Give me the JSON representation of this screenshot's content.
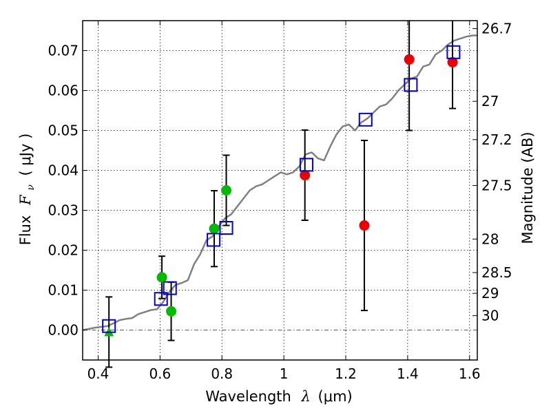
{
  "chart_data": {
    "type": "scatter",
    "xlabel": "Wavelength",
    "xlabel_symbol": "λ",
    "xlabel_unit": "(μm)",
    "ylabel": "Flux",
    "ylabel_symbol": "F",
    "ylabel_subscript": "ν",
    "ylabel_unit": "( μJy )",
    "right_ylabel": "Magnitude (AB)",
    "xlim": [
      0.35,
      1.625
    ],
    "ylim": [
      -0.0075,
      0.0775
    ],
    "grid": true,
    "x_ticks": [
      0.4,
      0.6,
      0.8,
      1,
      1.2,
      1.4,
      1.6
    ],
    "x_tick_labels": [
      "0.4",
      "0.6",
      "0.8",
      "1",
      "1.2",
      "1.4",
      "1.6"
    ],
    "y_ticks": [
      0.0,
      0.01,
      0.02,
      0.03,
      0.04,
      0.05,
      0.06,
      0.07
    ],
    "y_tick_labels": [
      "0.00",
      "0.01",
      "0.02",
      "0.03",
      "0.04",
      "0.05",
      "0.06",
      "0.07"
    ],
    "right_ticks": [
      {
        "label": "26.7",
        "flux": 0.0755
      },
      {
        "label": "27",
        "flux": 0.0573
      },
      {
        "label": "27.2",
        "flux": 0.0477
      },
      {
        "label": "27.5",
        "flux": 0.0362
      },
      {
        "label": "28",
        "flux": 0.0228
      },
      {
        "label": "28.5",
        "flux": 0.0144
      },
      {
        "label": "29",
        "flux": 0.0092
      },
      {
        "label": "30",
        "flux": 0.0036
      }
    ],
    "colors": {
      "model": "#808080",
      "model_points": "#0000cc",
      "hst_points": "#00bb00",
      "ir_points": "#ee0000",
      "errorbar": "#000000",
      "zero_line": "#555555"
    },
    "series": [
      {
        "kind": "line",
        "x": [
          0.35,
          0.37,
          0.39,
          0.41,
          0.43,
          0.45,
          0.47,
          0.49,
          0.51,
          0.53,
          0.55,
          0.57,
          0.59,
          0.61,
          0.63,
          0.65,
          0.67,
          0.69,
          0.71,
          0.73,
          0.75,
          0.77,
          0.79,
          0.81,
          0.83,
          0.85,
          0.87,
          0.89,
          0.91,
          0.93,
          0.95,
          0.97,
          0.99,
          1.01,
          1.03,
          1.05,
          1.07,
          1.09,
          1.11,
          1.13,
          1.15,
          1.17,
          1.19,
          1.21,
          1.23,
          1.25,
          1.27,
          1.29,
          1.31,
          1.33,
          1.35,
          1.37,
          1.39,
          1.41,
          1.43,
          1.45,
          1.47,
          1.49,
          1.51,
          1.53,
          1.55,
          1.57,
          1.59,
          1.61,
          1.625
        ],
        "y": [
          0.0,
          0.0003,
          0.0006,
          0.0008,
          0.001,
          0.0017,
          0.0025,
          0.0028,
          0.003,
          0.004,
          0.0045,
          0.005,
          0.0052,
          0.007,
          0.0095,
          0.0113,
          0.0118,
          0.0125,
          0.0165,
          0.019,
          0.0225,
          0.0235,
          0.026,
          0.028,
          0.029,
          0.031,
          0.033,
          0.035,
          0.036,
          0.0365,
          0.0375,
          0.0385,
          0.0395,
          0.039,
          0.0395,
          0.041,
          0.044,
          0.0445,
          0.043,
          0.0425,
          0.046,
          0.049,
          0.051,
          0.0515,
          0.05,
          0.052,
          0.053,
          0.0545,
          0.056,
          0.0565,
          0.058,
          0.06,
          0.0615,
          0.063,
          0.0635,
          0.066,
          0.0665,
          0.069,
          0.07,
          0.0715,
          0.0725,
          0.073,
          0.0735,
          0.0738,
          0.0738
        ]
      },
      {
        "kind": "model_points",
        "x": [
          0.435,
          0.603,
          0.632,
          0.773,
          0.814,
          1.073,
          1.264,
          1.41,
          1.548
        ],
        "y": [
          0.001,
          0.0078,
          0.0105,
          0.0226,
          0.0256,
          0.0414,
          0.0527,
          0.0614,
          0.0696
        ]
      },
      {
        "kind": "hst_points",
        "x": [
          0.435,
          0.606,
          0.636,
          0.775,
          0.814
        ],
        "y": [
          -0.0005,
          0.0132,
          0.0047,
          0.0254,
          0.035
        ],
        "yerr": [
          0.0088,
          0.0053,
          0.0073,
          0.0095,
          0.0088
        ]
      },
      {
        "kind": "ir_points",
        "x": [
          1.068,
          1.26,
          1.405,
          1.545
        ],
        "y": [
          0.0388,
          0.0262,
          0.0678,
          0.0671
        ],
        "yerr": [
          0.0113,
          0.0213,
          0.0178,
          0.0116
        ]
      }
    ]
  }
}
